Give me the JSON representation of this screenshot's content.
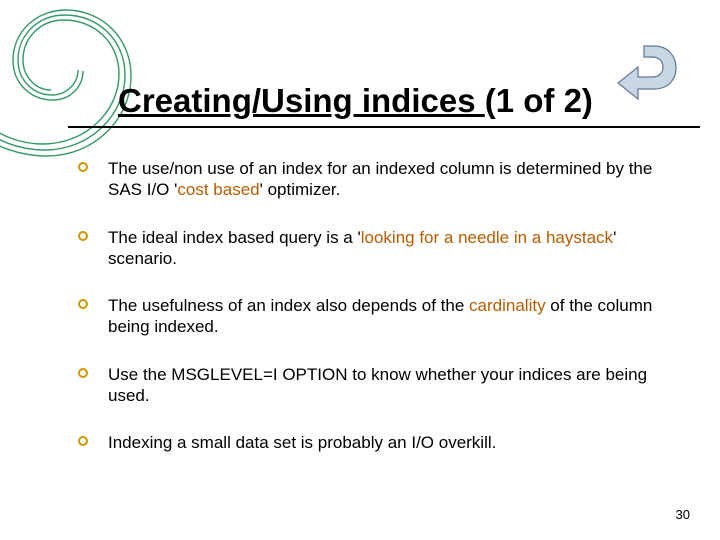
{
  "colors": {
    "accent": "#b85c00",
    "swirl_stroke": "#339966",
    "arrow_fill": "#c9d6e4",
    "arrow_border": "#5f7896",
    "title_underline": "#000000",
    "text": "#000000",
    "background": "#ffffff"
  },
  "title": {
    "part_underlined": "Creating/Using indices ",
    "part_plain": "(1 of 2)",
    "fontsize": 33
  },
  "bullet_marker_color": "#cc9900",
  "bullet_fontsize": 17,
  "bullets": [
    {
      "segments": [
        {
          "t": "The use/non use of an index for an indexed column is determined by the SAS I/O '",
          "accent": false
        },
        {
          "t": "cost based",
          "accent": true
        },
        {
          "t": "' optimizer.",
          "accent": false
        }
      ]
    },
    {
      "segments": [
        {
          "t": "The ideal index based query is a '",
          "accent": false
        },
        {
          "t": "looking for a needle in a haystack",
          "accent": true
        },
        {
          "t": "' scenario.",
          "accent": false
        }
      ]
    },
    {
      "segments": [
        {
          "t": "The usefulness of an index also depends of the ",
          "accent": false
        },
        {
          "t": "cardinality",
          "accent": true
        },
        {
          "t": " of the column being indexed.",
          "accent": false
        }
      ]
    },
    {
      "segments": [
        {
          "t": "Use the MSGLEVEL=I OPTION to know whether your indices are being used.",
          "accent": false
        }
      ]
    },
    {
      "segments": [
        {
          "t": "Indexing a small data set is probably an I/O overkill.",
          "accent": false
        }
      ]
    }
  ],
  "page_number": "30",
  "action_arrow": {
    "width": 70,
    "height": 60
  }
}
